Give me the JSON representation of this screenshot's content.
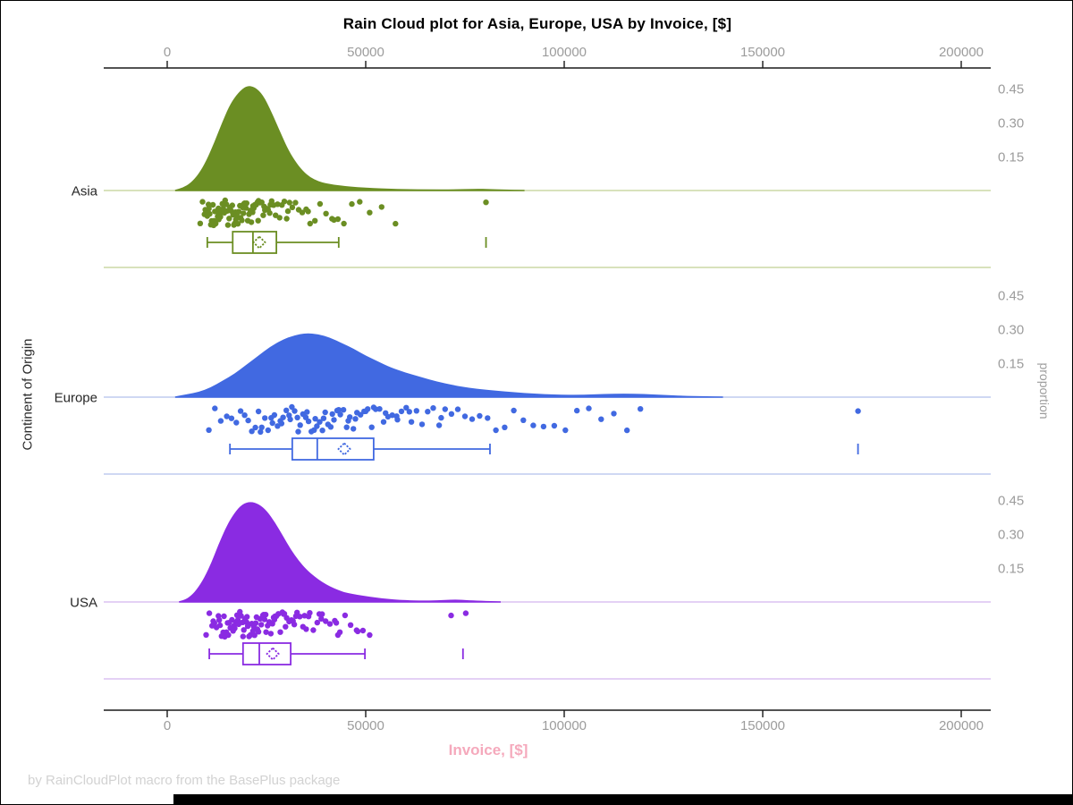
{
  "caption": "by RainCloudPlot macro from the BasePlus package",
  "chart_data": {
    "type": "raincloud",
    "title": "Rain Cloud plot for Asia, Europe, USA by Invoice, [$]",
    "xlabel": "Invoice, [$]",
    "ylabel_left": "Continent of Origin",
    "ylabel_right": "proportion",
    "xlabel_color": "#F5A9BC",
    "axis_color": "#1a1a1a",
    "tick_label_color": "#9c9c9c",
    "category_label_color": "#262626",
    "x_axis": {
      "min": 0,
      "max": 200000,
      "ticks": [
        0,
        50000,
        100000,
        150000,
        200000
      ],
      "tick_labels": [
        "0",
        "50000",
        "100000",
        "150000",
        "200000"
      ]
    },
    "proportion_axis": {
      "ticks": [
        0.45,
        0.3,
        0.15
      ],
      "tick_labels": [
        "0.45",
        "0.30",
        "0.15"
      ]
    },
    "series": [
      {
        "name": "Asia",
        "color": "#6B8E23",
        "light_color": "#CBD8A6",
        "density": [
          [
            2000,
            0.0
          ],
          [
            4000,
            0.01
          ],
          [
            6000,
            0.03
          ],
          [
            8000,
            0.07
          ],
          [
            10000,
            0.13
          ],
          [
            12000,
            0.21
          ],
          [
            14000,
            0.3
          ],
          [
            16000,
            0.38
          ],
          [
            18000,
            0.43
          ],
          [
            20000,
            0.46
          ],
          [
            22000,
            0.455
          ],
          [
            24000,
            0.42
          ],
          [
            26000,
            0.35
          ],
          [
            28000,
            0.27
          ],
          [
            30000,
            0.19
          ],
          [
            32000,
            0.13
          ],
          [
            34000,
            0.085
          ],
          [
            36000,
            0.055
          ],
          [
            38000,
            0.038
          ],
          [
            40000,
            0.028
          ],
          [
            44000,
            0.018
          ],
          [
            48000,
            0.012
          ],
          [
            52000,
            0.008
          ],
          [
            56000,
            0.005
          ],
          [
            60000,
            0.003
          ],
          [
            66000,
            0.002
          ],
          [
            72000,
            0.002
          ],
          [
            78000,
            0.005
          ],
          [
            81000,
            0.004
          ],
          [
            85000,
            0.001
          ],
          [
            90000,
            0.0
          ]
        ],
        "box": {
          "min": 10100,
          "q1": 16500,
          "median": 21600,
          "mean": 23200,
          "q3": 27500,
          "max": 43200,
          "outliers": [
            80300
          ]
        },
        "points": [
          8300,
          8900,
          9400,
          9600,
          9800,
          10100,
          10400,
          10500,
          10700,
          11000,
          11200,
          11500,
          11700,
          11800,
          12000,
          12200,
          12500,
          12700,
          12900,
          13000,
          13200,
          13400,
          13700,
          13900,
          14100,
          14400,
          14600,
          14900,
          15100,
          15300,
          15600,
          15800,
          16100,
          16400,
          16600,
          16800,
          17000,
          17200,
          17300,
          17500,
          17800,
          18000,
          18300,
          18500,
          18800,
          19000,
          19200,
          19300,
          19500,
          19800,
          20000,
          20300,
          20600,
          20900,
          21200,
          21500,
          21600,
          21800,
          22100,
          22400,
          22700,
          22900,
          23000,
          23400,
          23800,
          24200,
          24400,
          24600,
          25000,
          25400,
          25800,
          26000,
          26300,
          26800,
          27300,
          27800,
          28300,
          28900,
          29500,
          30100,
          30400,
          30800,
          31500,
          32300,
          33100,
          34000,
          35000,
          35500,
          36000,
          37200,
          38500,
          40000,
          41500,
          42000,
          43000,
          44500,
          46500,
          48500,
          51000,
          54000,
          57500,
          80300
        ]
      },
      {
        "name": "Europe",
        "color": "#4169E1",
        "light_color": "#BFCBEF",
        "density": [
          [
            2000,
            0.0
          ],
          [
            5000,
            0.01
          ],
          [
            8000,
            0.02
          ],
          [
            11000,
            0.04
          ],
          [
            14000,
            0.07
          ],
          [
            17000,
            0.1
          ],
          [
            20000,
            0.14
          ],
          [
            23000,
            0.18
          ],
          [
            26000,
            0.22
          ],
          [
            29000,
            0.25
          ],
          [
            32000,
            0.27
          ],
          [
            35000,
            0.28
          ],
          [
            38000,
            0.275
          ],
          [
            41000,
            0.26
          ],
          [
            44000,
            0.235
          ],
          [
            47000,
            0.21
          ],
          [
            50000,
            0.18
          ],
          [
            53000,
            0.155
          ],
          [
            56000,
            0.13
          ],
          [
            60000,
            0.105
          ],
          [
            64000,
            0.085
          ],
          [
            68000,
            0.065
          ],
          [
            72000,
            0.05
          ],
          [
            76000,
            0.038
          ],
          [
            80000,
            0.03
          ],
          [
            85000,
            0.022
          ],
          [
            90000,
            0.015
          ],
          [
            95000,
            0.01
          ],
          [
            100000,
            0.007
          ],
          [
            105000,
            0.008
          ],
          [
            110000,
            0.011
          ],
          [
            115000,
            0.013
          ],
          [
            120000,
            0.011
          ],
          [
            125000,
            0.007
          ],
          [
            130000,
            0.003
          ],
          [
            135000,
            0.001
          ],
          [
            140000,
            0.0
          ]
        ],
        "box": {
          "min": 15800,
          "q1": 31500,
          "median": 37800,
          "mean": 44600,
          "q3": 52000,
          "max": 81300,
          "outliers": [
            174000
          ]
        },
        "points": [
          10500,
          12000,
          13500,
          15000,
          16200,
          17400,
          18500,
          19500,
          20400,
          21300,
          22200,
          23000,
          23500,
          23800,
          24600,
          25400,
          26200,
          26500,
          27000,
          27800,
          28500,
          28800,
          29200,
          30000,
          30700,
          31000,
          31400,
          32100,
          32800,
          33000,
          33500,
          34200,
          34900,
          35200,
          35600,
          36300,
          37000,
          37300,
          37700,
          38400,
          39100,
          39400,
          39800,
          40500,
          41200,
          41600,
          42000,
          42800,
          43200,
          43600,
          44400,
          45200,
          45600,
          46000,
          46900,
          47400,
          47800,
          48700,
          49600,
          50000,
          50500,
          51500,
          52000,
          52500,
          53500,
          54500,
          55000,
          55600,
          56700,
          57800,
          58000,
          59000,
          60200,
          61000,
          61500,
          62800,
          64200,
          65600,
          67000,
          68500,
          69000,
          70000,
          71600,
          73200,
          75000,
          76800,
          78700,
          80700,
          82800,
          85000,
          87300,
          89700,
          92200,
          94800,
          97500,
          100300,
          103200,
          106200,
          109300,
          112500,
          115800,
          119200,
          174000
        ]
      },
      {
        "name": "USA",
        "color": "#8A2BE2",
        "light_color": "#DCC2F2",
        "density": [
          [
            3000,
            0.0
          ],
          [
            5000,
            0.01
          ],
          [
            7000,
            0.04
          ],
          [
            9000,
            0.09
          ],
          [
            11000,
            0.16
          ],
          [
            13000,
            0.25
          ],
          [
            15000,
            0.33
          ],
          [
            17000,
            0.39
          ],
          [
            19000,
            0.43
          ],
          [
            21000,
            0.44
          ],
          [
            23000,
            0.43
          ],
          [
            25000,
            0.4
          ],
          [
            27000,
            0.35
          ],
          [
            29000,
            0.29
          ],
          [
            31000,
            0.23
          ],
          [
            33000,
            0.18
          ],
          [
            35000,
            0.14
          ],
          [
            37000,
            0.11
          ],
          [
            39000,
            0.085
          ],
          [
            41000,
            0.065
          ],
          [
            43000,
            0.05
          ],
          [
            45000,
            0.038
          ],
          [
            48000,
            0.028
          ],
          [
            51000,
            0.02
          ],
          [
            54000,
            0.013
          ],
          [
            57000,
            0.008
          ],
          [
            60000,
            0.005
          ],
          [
            64000,
            0.003
          ],
          [
            68000,
            0.004
          ],
          [
            72000,
            0.008
          ],
          [
            75000,
            0.006
          ],
          [
            79000,
            0.002
          ],
          [
            84000,
            0.0
          ]
        ],
        "box": {
          "min": 10600,
          "q1": 19100,
          "median": 23200,
          "mean": 26600,
          "q3": 31100,
          "max": 49800,
          "outliers": [
            74500
          ]
        },
        "points": [
          9800,
          10600,
          11300,
          11600,
          11900,
          12400,
          12900,
          13100,
          13300,
          13700,
          14100,
          14300,
          14500,
          14900,
          15200,
          15400,
          15600,
          15900,
          16300,
          16600,
          16800,
          17000,
          17300,
          17600,
          17800,
          18000,
          18300,
          18600,
          19000,
          19100,
          19300,
          19600,
          20000,
          20100,
          20300,
          20600,
          21000,
          21300,
          21600,
          21800,
          22000,
          22300,
          22500,
          22700,
          23000,
          23400,
          23700,
          24100,
          24300,
          24500,
          24800,
          24900,
          25300,
          25700,
          26100,
          26500,
          26800,
          27000,
          27200,
          27500,
          28000,
          28500,
          29000,
          29300,
          29500,
          29800,
          30100,
          30700,
          31300,
          31700,
          32000,
          32400,
          32700,
          33400,
          34200,
          34600,
          35000,
          35600,
          35900,
          36800,
          37800,
          38300,
          38800,
          39000,
          39900,
          41000,
          42200,
          42600,
          43000,
          43500,
          44800,
          46200,
          47700,
          48000,
          49300,
          51000,
          71500,
          75200
        ]
      }
    ]
  }
}
